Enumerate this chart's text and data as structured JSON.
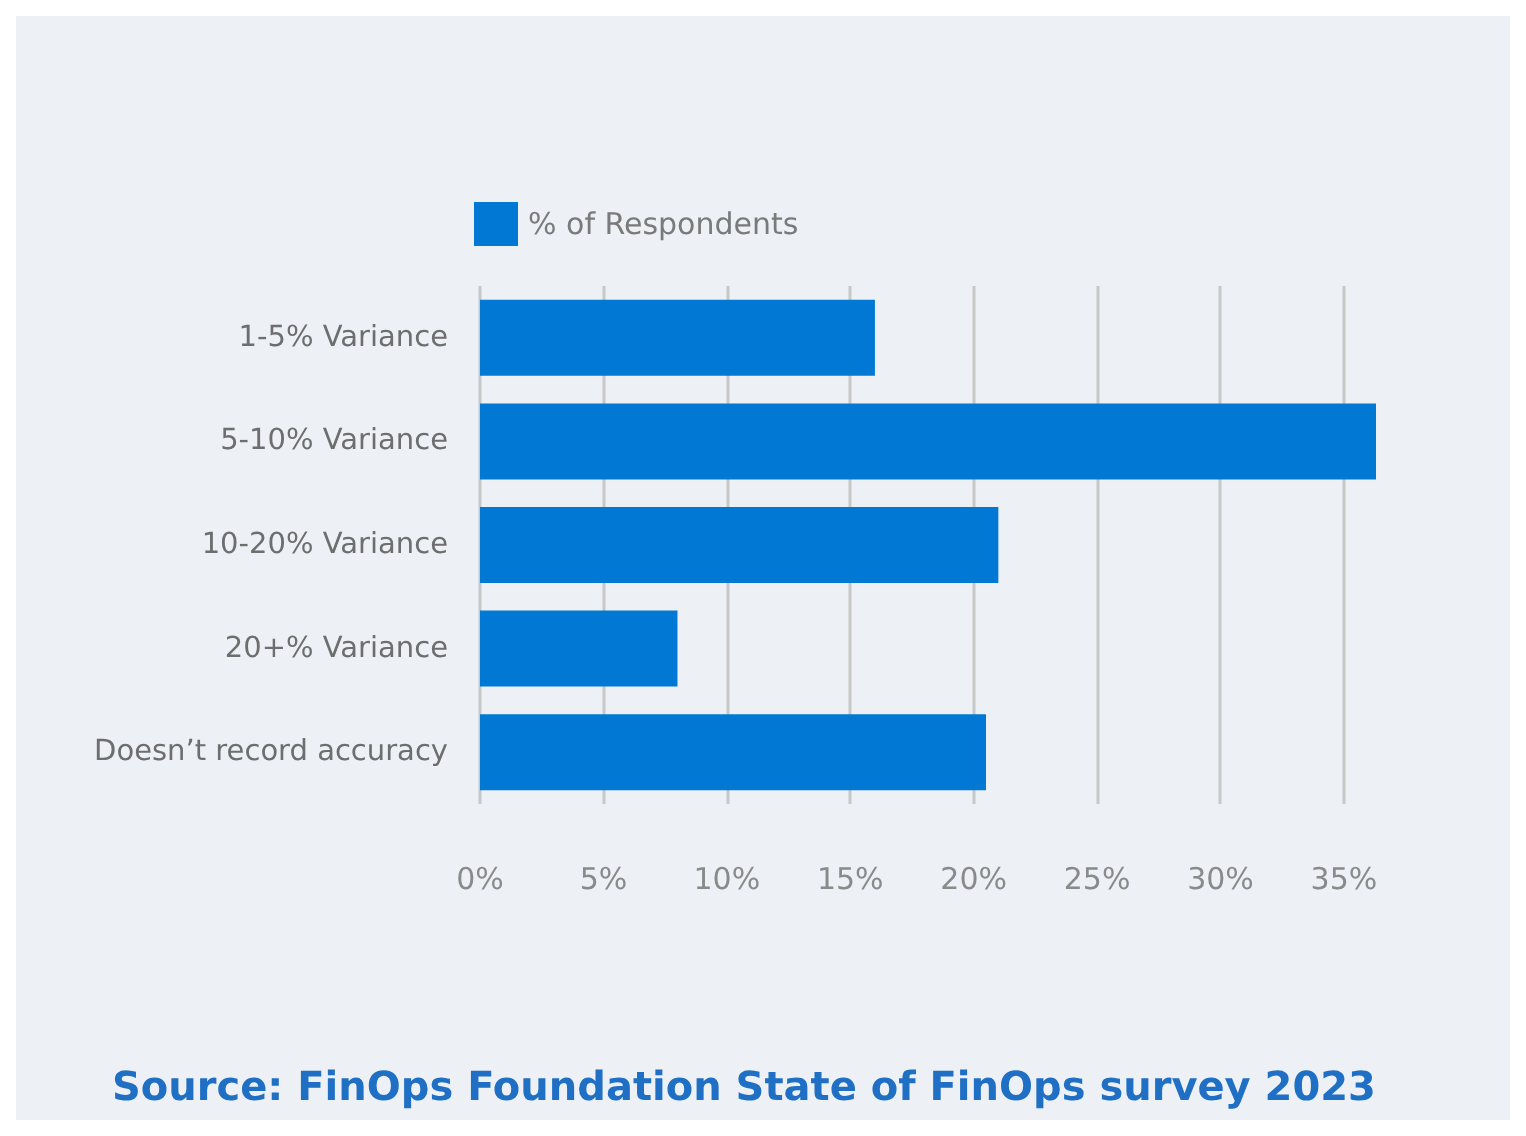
{
  "chart_data": {
    "type": "bar",
    "orientation": "horizontal",
    "categories": [
      "1-5% Variance",
      "5-10% Variance",
      "10-20% Variance",
      "20+% Variance",
      "Doesn’t record accuracy"
    ],
    "series": [
      {
        "name": "% of Respondents",
        "color": "#0078d4",
        "values": [
          16,
          36.3,
          21,
          8,
          20.5
        ]
      }
    ],
    "xlim": [
      0,
      36.3
    ],
    "xticks": [
      {
        "value": 0,
        "label": "0%"
      },
      {
        "value": 5,
        "label": "5%"
      },
      {
        "value": 10,
        "label": "10%"
      },
      {
        "value": 15,
        "label": "15%"
      },
      {
        "value": 20,
        "label": "20%"
      },
      {
        "value": 25,
        "label": "25%"
      },
      {
        "value": 30,
        "label": "30%"
      },
      {
        "value": 35,
        "label": "35%"
      }
    ],
    "grid": "x",
    "legend": "top left",
    "annotations": [
      "Source: FinOps Foundation State of FinOps survey 2023"
    ]
  }
}
